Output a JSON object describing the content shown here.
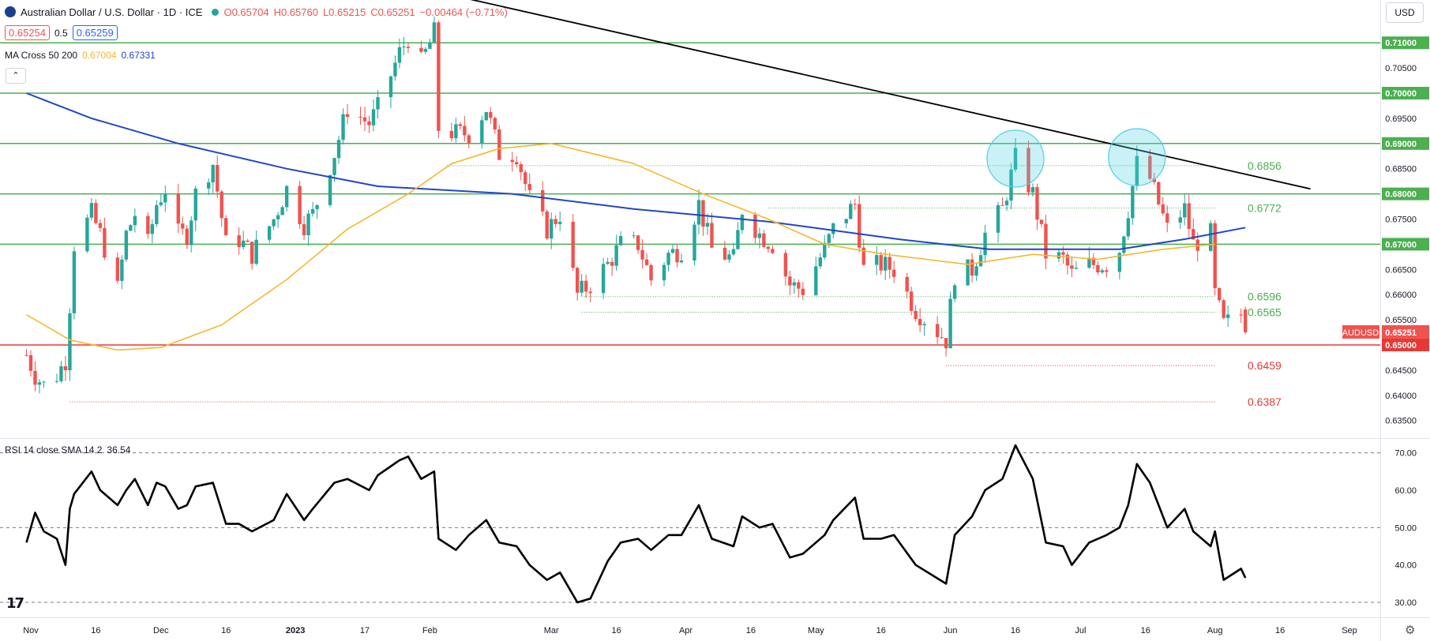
{
  "header": {
    "symbol_title": "Australian Dollar / U.S. Dollar · 1D · ICE",
    "ohlc": {
      "open": "O0.65704",
      "high": "H0.65760",
      "low": "L0.65215",
      "close": "C0.65251",
      "change": "−0.00464 (−0.71%)"
    },
    "bid": "0.65254",
    "spread": "0.5",
    "ask": "0.65259",
    "ma_label": "MA Cross 50 200",
    "ma50_value": "0.67004",
    "ma200_value": "0.67331",
    "collapse_icon": "chevron-up-icon"
  },
  "currency_button": "USD",
  "rsi_label": "RSI 14 close SMA 14 2",
  "rsi_value": "36.54",
  "symbol_tag": "AUDUSD",
  "last_price": "0.65251",
  "colors": {
    "up": "#26a69a",
    "down": "#ef5350",
    "ma50": "#f5b82e",
    "ma200": "#2046c8",
    "level": "#4caf50",
    "support": "#e53935",
    "trend": "#000000",
    "highlight": "#4dd0e1"
  },
  "chart_data": [
    {
      "type": "candlestick",
      "title": "Australian Dollar / U.S. Dollar · 1D · ICE",
      "x_tick_labels": [
        "Nov",
        "16",
        "Dec",
        "16",
        "2023",
        "17",
        "Feb",
        "Mar",
        "16",
        "Apr",
        "16",
        "May",
        "16",
        "Jun",
        "16",
        "Jul",
        "16",
        "Aug",
        "16",
        "Sep"
      ],
      "y_tick_labels": [
        "0.63500",
        "0.64000",
        "0.64500",
        "0.65000",
        "0.65500",
        "0.66000",
        "0.66500",
        "0.67000",
        "0.67500",
        "0.68000",
        "0.68500",
        "0.69000",
        "0.69500",
        "0.70000",
        "0.70500",
        "0.71000"
      ],
      "ylim": [
        0.6315,
        0.7185
      ],
      "grid": false,
      "horizontal_levels": [
        {
          "value": 0.71,
          "label": "0.71000",
          "color": "green"
        },
        {
          "value": 0.7,
          "label": "0.70000",
          "color": "green"
        },
        {
          "value": 0.69,
          "label": "0.69000",
          "color": "green"
        },
        {
          "value": 0.68,
          "label": "0.68000",
          "color": "green"
        },
        {
          "value": 0.67,
          "label": "0.67000",
          "color": "green"
        },
        {
          "value": 0.65,
          "label": "0.65000",
          "color": "red"
        }
      ],
      "annotations": [
        {
          "text": "0.6856",
          "value": 0.6856
        },
        {
          "text": "0.6772",
          "value": 0.6772
        },
        {
          "text": "0.6596",
          "value": 0.6596
        },
        {
          "text": "0.6565",
          "value": 0.6565
        },
        {
          "text": "0.6459",
          "value": 0.6459
        },
        {
          "text": "0.6387",
          "value": 0.6387
        }
      ],
      "price_path": [
        [
          "2022-10-31",
          0.648
        ],
        [
          "2022-11-02",
          0.644
        ],
        [
          "2022-11-04",
          0.642
        ],
        [
          "2022-11-07",
          0.644
        ],
        [
          "2022-11-09",
          0.647
        ],
        [
          "2022-11-10",
          0.658
        ],
        [
          "2022-11-11",
          0.67
        ],
        [
          "2022-11-15",
          0.676
        ],
        [
          "2022-11-17",
          0.672
        ],
        [
          "2022-11-21",
          0.661
        ],
        [
          "2022-11-23",
          0.672
        ],
        [
          "2022-11-25",
          0.676
        ],
        [
          "2022-11-28",
          0.67
        ],
        [
          "2022-11-30",
          0.678
        ],
        [
          "2022-12-02",
          0.681
        ],
        [
          "2022-12-05",
          0.672
        ],
        [
          "2022-12-07",
          0.672
        ],
        [
          "2022-12-09",
          0.68
        ],
        [
          "2022-12-13",
          0.686
        ],
        [
          "2022-12-16",
          0.67
        ],
        [
          "2022-12-19",
          0.671
        ],
        [
          "2022-12-22",
          0.668
        ],
        [
          "2022-12-27",
          0.675
        ],
        [
          "2022-12-30",
          0.681
        ],
        [
          "2023-01-03",
          0.674
        ],
        [
          "2023-01-05",
          0.676
        ],
        [
          "2023-01-10",
          0.688
        ],
        [
          "2023-01-13",
          0.697
        ],
        [
          "2023-01-18",
          0.694
        ],
        [
          "2023-01-20",
          0.697
        ],
        [
          "2023-01-25",
          0.708
        ],
        [
          "2023-01-27",
          0.711
        ],
        [
          "2023-01-30",
          0.706
        ],
        [
          "2023-02-02",
          0.712
        ],
        [
          "2023-02-03",
          0.693
        ],
        [
          "2023-02-07",
          0.692
        ],
        [
          "2023-02-10",
          0.692
        ],
        [
          "2023-02-14",
          0.697
        ],
        [
          "2023-02-17",
          0.688
        ],
        [
          "2023-02-21",
          0.688
        ],
        [
          "2023-02-24",
          0.679
        ],
        [
          "2023-02-28",
          0.673
        ],
        [
          "2023-03-03",
          0.676
        ],
        [
          "2023-03-07",
          0.66
        ],
        [
          "2023-03-10",
          0.662
        ],
        [
          "2023-03-14",
          0.666
        ],
        [
          "2023-03-17",
          0.67
        ],
        [
          "2023-03-21",
          0.67
        ],
        [
          "2023-03-24",
          0.663
        ],
        [
          "2023-03-28",
          0.668
        ],
        [
          "2023-03-31",
          0.669
        ],
        [
          "2023-04-04",
          0.678
        ],
        [
          "2023-04-07",
          0.669
        ],
        [
          "2023-04-12",
          0.667
        ],
        [
          "2023-04-14",
          0.677
        ],
        [
          "2023-04-18",
          0.672
        ],
        [
          "2023-04-21",
          0.67
        ],
        [
          "2023-04-25",
          0.662
        ],
        [
          "2023-04-28",
          0.661
        ],
        [
          "2023-05-03",
          0.669
        ],
        [
          "2023-05-05",
          0.673
        ],
        [
          "2023-05-10",
          0.678
        ],
        [
          "2023-05-12",
          0.665
        ],
        [
          "2023-05-16",
          0.666
        ],
        [
          "2023-05-19",
          0.665
        ],
        [
          "2023-05-24",
          0.657
        ],
        [
          "2023-05-31",
          0.651
        ],
        [
          "2023-06-02",
          0.664
        ],
        [
          "2023-06-06",
          0.665
        ],
        [
          "2023-06-09",
          0.672
        ],
        [
          "2023-06-13",
          0.677
        ],
        [
          "2023-06-16",
          0.687
        ],
        [
          "2023-06-20",
          0.68
        ],
        [
          "2023-06-23",
          0.668
        ],
        [
          "2023-06-27",
          0.667
        ],
        [
          "2023-06-29",
          0.664
        ],
        [
          "2023-07-03",
          0.666
        ],
        [
          "2023-07-07",
          0.666
        ],
        [
          "2023-07-10",
          0.669
        ],
        [
          "2023-07-12",
          0.677
        ],
        [
          "2023-07-14",
          0.686
        ],
        [
          "2023-07-17",
          0.683
        ],
        [
          "2023-07-19",
          0.678
        ],
        [
          "2023-07-21",
          0.673
        ],
        [
          "2023-07-25",
          0.677
        ],
        [
          "2023-07-27",
          0.67
        ],
        [
          "2023-07-31",
          0.672
        ],
        [
          "2023-08-01",
          0.66
        ],
        [
          "2023-08-03",
          0.654
        ],
        [
          "2023-08-07",
          0.656
        ],
        [
          "2023-08-08",
          0.6525
        ]
      ]
    },
    {
      "type": "line",
      "title": "RSI 14 close SMA 14 2",
      "y_tick_labels": [
        "30.00",
        "40.00",
        "50.00",
        "60.00",
        "70.00"
      ],
      "ylim": [
        26,
        73.5
      ],
      "dashed_levels": [
        70,
        50,
        30
      ],
      "last_value": 36.54,
      "points": [
        [
          "2022-10-31",
          46
        ],
        [
          "2022-11-02",
          54
        ],
        [
          "2022-11-04",
          49
        ],
        [
          "2022-11-07",
          47
        ],
        [
          "2022-11-09",
          40
        ],
        [
          "2022-11-10",
          55
        ],
        [
          "2022-11-11",
          59
        ],
        [
          "2022-11-15",
          65
        ],
        [
          "2022-11-17",
          60
        ],
        [
          "2022-11-21",
          56
        ],
        [
          "2022-11-23",
          60
        ],
        [
          "2022-11-25",
          63
        ],
        [
          "2022-11-28",
          56
        ],
        [
          "2022-11-30",
          62
        ],
        [
          "2022-12-02",
          61
        ],
        [
          "2022-12-05",
          55
        ],
        [
          "2022-12-07",
          56
        ],
        [
          "2022-12-09",
          61
        ],
        [
          "2022-12-13",
          62
        ],
        [
          "2022-12-16",
          51
        ],
        [
          "2022-12-19",
          51
        ],
        [
          "2022-12-22",
          49
        ],
        [
          "2022-12-27",
          52
        ],
        [
          "2022-12-30",
          59
        ],
        [
          "2023-01-03",
          52
        ],
        [
          "2023-01-05",
          55
        ],
        [
          "2023-01-10",
          62
        ],
        [
          "2023-01-13",
          63
        ],
        [
          "2023-01-18",
          60
        ],
        [
          "2023-01-20",
          64
        ],
        [
          "2023-01-25",
          68
        ],
        [
          "2023-01-27",
          69
        ],
        [
          "2023-01-30",
          63
        ],
        [
          "2023-02-02",
          65
        ],
        [
          "2023-02-03",
          47
        ],
        [
          "2023-02-07",
          44
        ],
        [
          "2023-02-10",
          48
        ],
        [
          "2023-02-14",
          52
        ],
        [
          "2023-02-17",
          46
        ],
        [
          "2023-02-21",
          45
        ],
        [
          "2023-02-24",
          40
        ],
        [
          "2023-02-28",
          36
        ],
        [
          "2023-03-03",
          38
        ],
        [
          "2023-03-07",
          30
        ],
        [
          "2023-03-10",
          31
        ],
        [
          "2023-03-14",
          41
        ],
        [
          "2023-03-17",
          46
        ],
        [
          "2023-03-21",
          47
        ],
        [
          "2023-03-24",
          44
        ],
        [
          "2023-03-28",
          48
        ],
        [
          "2023-03-31",
          48
        ],
        [
          "2023-04-04",
          56
        ],
        [
          "2023-04-07",
          47
        ],
        [
          "2023-04-12",
          45
        ],
        [
          "2023-04-14",
          53
        ],
        [
          "2023-04-18",
          50
        ],
        [
          "2023-04-21",
          51
        ],
        [
          "2023-04-25",
          42
        ],
        [
          "2023-04-28",
          43
        ],
        [
          "2023-05-03",
          48
        ],
        [
          "2023-05-05",
          52
        ],
        [
          "2023-05-10",
          58
        ],
        [
          "2023-05-12",
          47
        ],
        [
          "2023-05-16",
          47
        ],
        [
          "2023-05-19",
          48
        ],
        [
          "2023-05-24",
          40
        ],
        [
          "2023-05-31",
          35
        ],
        [
          "2023-06-02",
          48
        ],
        [
          "2023-06-06",
          53
        ],
        [
          "2023-06-09",
          60
        ],
        [
          "2023-06-13",
          63
        ],
        [
          "2023-06-16",
          72
        ],
        [
          "2023-06-20",
          63
        ],
        [
          "2023-06-23",
          46
        ],
        [
          "2023-06-27",
          45
        ],
        [
          "2023-06-29",
          40
        ],
        [
          "2023-07-03",
          46
        ],
        [
          "2023-07-07",
          48
        ],
        [
          "2023-07-10",
          50
        ],
        [
          "2023-07-12",
          56
        ],
        [
          "2023-07-14",
          67
        ],
        [
          "2023-07-17",
          62
        ],
        [
          "2023-07-19",
          56
        ],
        [
          "2023-07-21",
          50
        ],
        [
          "2023-07-25",
          55
        ],
        [
          "2023-07-27",
          49
        ],
        [
          "2023-07-31",
          45
        ],
        [
          "2023-08-01",
          49
        ],
        [
          "2023-08-03",
          36
        ],
        [
          "2023-08-07",
          39
        ],
        [
          "2023-08-08",
          36.54
        ]
      ]
    }
  ],
  "overlays": {
    "ma50": [
      [
        "2022-10-31",
        0.656
      ],
      [
        "2022-11-10",
        0.651
      ],
      [
        "2022-11-21",
        0.649
      ],
      [
        "2022-12-01",
        0.6495
      ],
      [
        "2022-12-15",
        0.654
      ],
      [
        "2022-12-30",
        0.663
      ],
      [
        "2023-01-13",
        0.673
      ],
      [
        "2023-01-27",
        0.68
      ],
      [
        "2023-02-06",
        0.686
      ],
      [
        "2023-02-17",
        0.689
      ],
      [
        "2023-03-01",
        0.69
      ],
      [
        "2023-03-20",
        0.686
      ],
      [
        "2023-04-05",
        0.68
      ],
      [
        "2023-04-20",
        0.675
      ],
      [
        "2023-05-03",
        0.67
      ],
      [
        "2023-05-17",
        0.668
      ],
      [
        "2023-06-05",
        0.666
      ],
      [
        "2023-06-20",
        0.668
      ],
      [
        "2023-07-05",
        0.667
      ],
      [
        "2023-07-20",
        0.669
      ],
      [
        "2023-08-01",
        0.67
      ]
    ],
    "ma200": [
      [
        "2022-10-31",
        0.7
      ],
      [
        "2022-11-15",
        0.695
      ],
      [
        "2022-12-05",
        0.69
      ],
      [
        "2022-12-30",
        0.685
      ],
      [
        "2023-01-20",
        0.6815
      ],
      [
        "2023-02-20",
        0.68
      ],
      [
        "2023-03-20",
        0.677
      ],
      [
        "2023-04-20",
        0.6745
      ],
      [
        "2023-05-20",
        0.671
      ],
      [
        "2023-06-10",
        0.669
      ],
      [
        "2023-07-10",
        0.669
      ],
      [
        "2023-07-25",
        0.671
      ],
      [
        "2023-08-08",
        0.6733
      ]
    ],
    "trendline": {
      "from": [
        "2023-01-24",
        0.722
      ],
      "to": [
        "2023-08-23",
        0.681
      ]
    },
    "highlight_circles": [
      {
        "date": "2023-06-16",
        "value": 0.687
      },
      {
        "date": "2023-07-14",
        "value": 0.6873
      }
    ]
  }
}
